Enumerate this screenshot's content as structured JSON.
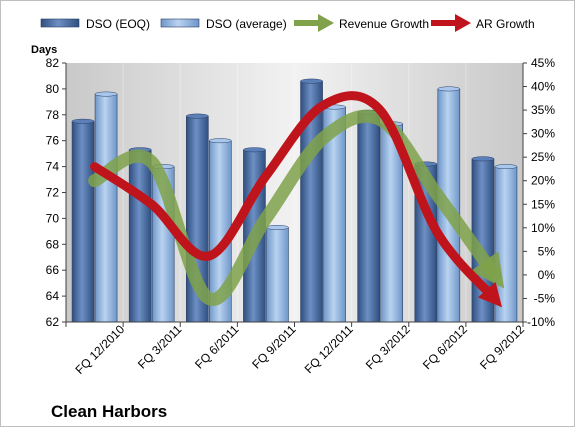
{
  "chart_data": {
    "type": "bar",
    "title": "",
    "company": "Clean Harbors",
    "ylabel": "Days",
    "xlabel": "",
    "categories": [
      "FQ 12/2010",
      "FQ 3/2011",
      "FQ 6/2011",
      "FQ 9/2011",
      "FQ 12/2011",
      "FQ 3/2012",
      "FQ 6/2012",
      "FQ 9/2012"
    ],
    "ylim": [
      62,
      82
    ],
    "y_ticks": [
      "62",
      "64",
      "66",
      "68",
      "70",
      "72",
      "74",
      "76",
      "78",
      "80",
      "82"
    ],
    "y2lim": [
      -10,
      45
    ],
    "y2_ticks": [
      "-10%",
      "-5%",
      "0%",
      "5%",
      "10%",
      "15%",
      "20%",
      "25%",
      "30%",
      "35%",
      "40%",
      "45%"
    ],
    "legend_position": "top",
    "grid": false,
    "series": [
      {
        "name": "DSO (EOQ)",
        "kind": "bar",
        "axis": "left",
        "color": "#4a6fa5",
        "values": [
          77.5,
          75.3,
          77.9,
          75.3,
          80.6,
          78.2,
          74.2,
          74.6
        ]
      },
      {
        "name": "DSO (average)",
        "kind": "bar",
        "axis": "left",
        "color": "#8db3e2",
        "values": [
          79.6,
          74.0,
          76.0,
          69.3,
          78.6,
          77.3,
          80.0,
          74.0
        ]
      },
      {
        "name": "Revenue Growth",
        "kind": "arrow",
        "axis": "right",
        "color": "#7fa24a",
        "values": [
          20,
          24,
          -5,
          12,
          29,
          33,
          17,
          0
        ]
      },
      {
        "name": "AR Growth",
        "kind": "arrow",
        "axis": "right",
        "color": "#c0141c",
        "values": [
          23,
          15,
          4,
          21,
          36,
          35,
          9,
          -5
        ]
      }
    ]
  }
}
